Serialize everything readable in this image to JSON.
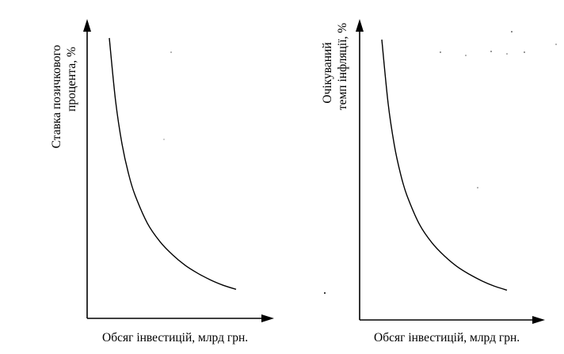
{
  "chart_data": [
    {
      "type": "line",
      "title": "",
      "xlabel": "Обсяг інвестицій, млрд грн.",
      "ylabel_lines": [
        "Ставка позичкового",
        "процента, %"
      ],
      "grid": false,
      "series": [
        {
          "points": [
            [
              0.0,
              1.0
            ],
            [
              0.05,
              0.76
            ],
            [
              0.1,
              0.6
            ],
            [
              0.15,
              0.49
            ],
            [
              0.2,
              0.41
            ],
            [
              0.3,
              0.3
            ],
            [
              0.4,
              0.23
            ],
            [
              0.5,
              0.18
            ],
            [
              0.6,
              0.14
            ],
            [
              0.7,
              0.11
            ],
            [
              0.8,
              0.085
            ],
            [
              0.9,
              0.065
            ],
            [
              1.0,
              0.05
            ]
          ]
        }
      ]
    },
    {
      "type": "line",
      "title": "",
      "xlabel": "Обсяг інвестицій, млрд грн.",
      "ylabel_lines": [
        "Очікуваний",
        "темп інфляції, %"
      ],
      "grid": false,
      "series": [
        {
          "points": [
            [
              0.0,
              1.0
            ],
            [
              0.05,
              0.76
            ],
            [
              0.1,
              0.6
            ],
            [
              0.15,
              0.49
            ],
            [
              0.2,
              0.41
            ],
            [
              0.3,
              0.3
            ],
            [
              0.4,
              0.23
            ],
            [
              0.5,
              0.18
            ],
            [
              0.6,
              0.14
            ],
            [
              0.7,
              0.11
            ],
            [
              0.8,
              0.085
            ],
            [
              0.9,
              0.065
            ],
            [
              1.0,
              0.05
            ]
          ]
        }
      ]
    }
  ]
}
